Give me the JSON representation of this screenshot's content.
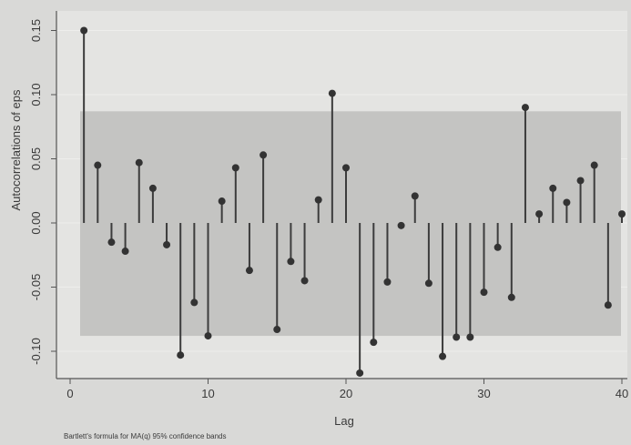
{
  "chart_data": {
    "type": "stem",
    "xlabel": "Lag",
    "ylabel": "Autocorrelations of eps",
    "note": "Bartlett's formula for MA(q) 95% confidence bands",
    "xlim": [
      0,
      40
    ],
    "ylim": [
      -0.12,
      0.16
    ],
    "xticks": [
      0,
      10,
      20,
      30,
      40
    ],
    "yticks": [
      0.15,
      0.1,
      0.05,
      0.0,
      -0.05,
      -0.1
    ],
    "ytick_labels": [
      "0.15",
      "0.10",
      "0.05",
      "0.00",
      "-0.05",
      "-0.10"
    ],
    "grid": true,
    "lags": [
      1,
      2,
      3,
      4,
      5,
      6,
      7,
      8,
      9,
      10,
      11,
      12,
      13,
      14,
      15,
      16,
      17,
      18,
      19,
      20,
      21,
      22,
      23,
      24,
      25,
      26,
      27,
      28,
      29,
      30,
      31,
      32,
      33,
      34,
      35,
      36,
      37,
      38,
      39,
      40
    ],
    "values": [
      0.15,
      0.045,
      -0.015,
      -0.022,
      0.047,
      0.027,
      -0.017,
      -0.103,
      -0.062,
      -0.088,
      0.017,
      0.043,
      -0.037,
      0.053,
      -0.083,
      -0.03,
      -0.045,
      0.018,
      0.101,
      0.043,
      -0.117,
      -0.093,
      -0.046,
      -0.002,
      0.021,
      -0.047,
      -0.104,
      -0.089,
      -0.089,
      -0.054,
      -0.019,
      -0.058,
      0.09,
      0.007,
      0.027,
      0.016,
      0.033,
      0.045,
      -0.064,
      0.007
    ],
    "band_upper": 0.087,
    "band_lower": -0.088,
    "colors": {
      "background": "#d9d9d7",
      "plot_area": "#e4e4e2",
      "band": "#c4c4c2",
      "stem": "#3c3c3c",
      "marker": "#333333",
      "grid": "#eeeeec",
      "axis": "#555555"
    }
  }
}
